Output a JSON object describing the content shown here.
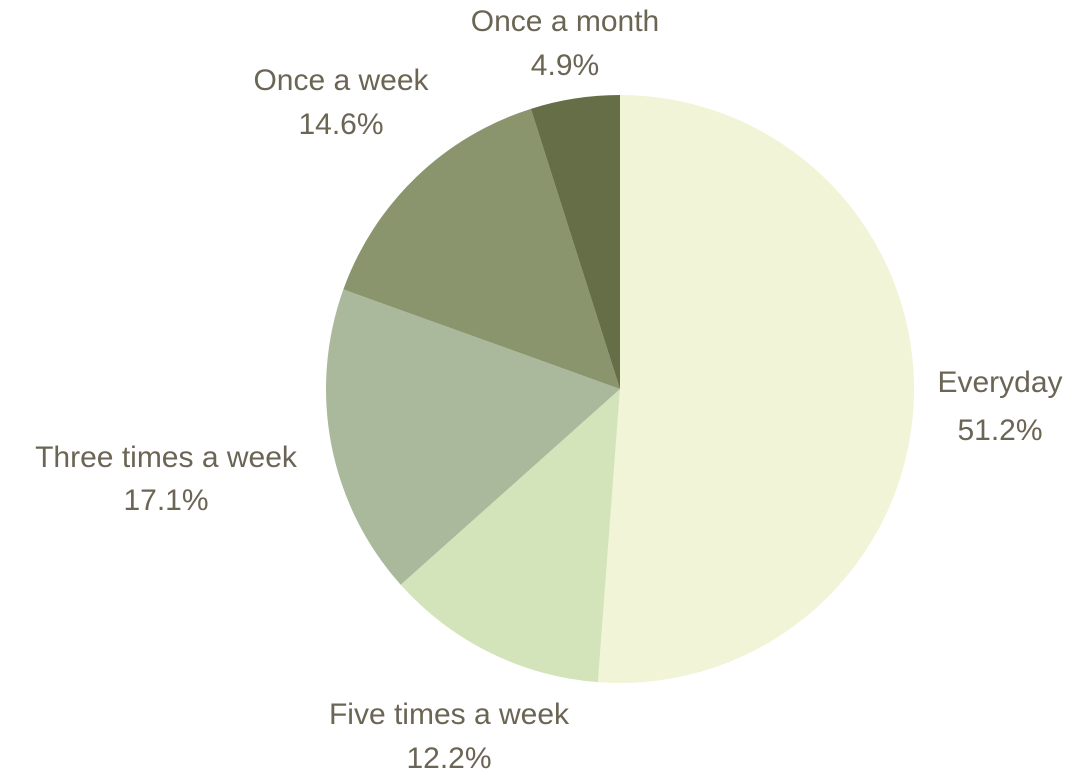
{
  "chart_data": {
    "type": "pie",
    "slices": [
      {
        "label": "Everyday",
        "value": 51.2,
        "display": "51.2%",
        "color": "#F2F4D8"
      },
      {
        "label": "Five times a week",
        "value": 12.2,
        "display": "12.2%",
        "color": "#D4E4BA"
      },
      {
        "label": "Three times a week",
        "value": 17.1,
        "display": "17.1%",
        "color": "#AAB99B"
      },
      {
        "label": "Once a week",
        "value": 14.6,
        "display": "14.6%",
        "color": "#8A956E"
      },
      {
        "label": "Once a month",
        "value": 4.9,
        "display": "4.9%",
        "color": "#666E48"
      }
    ],
    "start_angle": "12 o'clock",
    "direction": "clockwise",
    "label_color": "#6B6555"
  }
}
